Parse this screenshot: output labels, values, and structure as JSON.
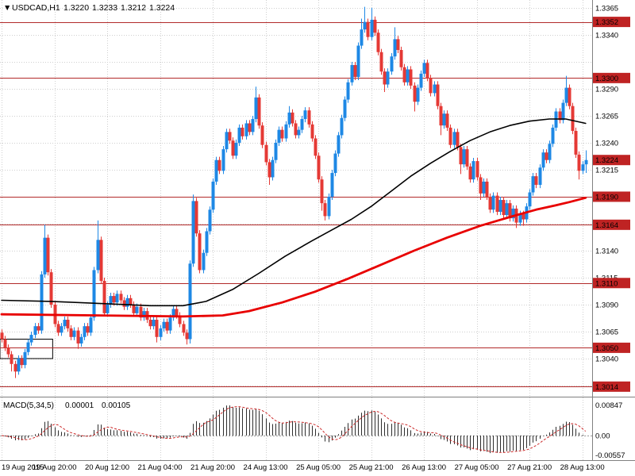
{
  "header": {
    "dropdown_icon": "▼",
    "title": "USDCAD,H1",
    "open": "1.3220",
    "high": "1.3233",
    "low": "1.3212",
    "close": "1.3224"
  },
  "macd_panel": {
    "label": "MACD(5,34,5)",
    "value_main": "0.00001",
    "value_signal": "0.00105",
    "axis_max": "0.00847",
    "axis_zero": "0.00",
    "axis_min": "-0.00557"
  },
  "colors": {
    "up": "#1e88e5",
    "down": "#e53935",
    "ma_fast": "#000000",
    "ma_slow": "#e80000",
    "level_line": "#b22a2a",
    "badge_bg": "#bf2323",
    "badge_text": "#ffffff",
    "grid": "#cfcfcf",
    "separator": "#808080",
    "macd_hist": "#2e2e2e",
    "macd_signal": "#cc2a2a",
    "object_stroke": "#000000"
  },
  "chart_data": {
    "type": "candlestick",
    "symbol": "USDCAD",
    "timeframe": "H1",
    "x_axis": {
      "bars_per_label": 16,
      "labels": [
        "19 Aug 2015",
        "19 Aug 20:00",
        "20 Aug 12:00",
        "21 Aug 04:00",
        "21 Aug 20:00",
        "24 Aug 13:00",
        "25 Aug 05:00",
        "25 Aug 21:00",
        "26 Aug 13:00",
        "27 Aug 05:00",
        "27 Aug 21:00",
        "28 Aug 13:00"
      ]
    },
    "price": {
      "ylim": [
        1.30047,
        1.33723
      ],
      "open_first": 1.3064,
      "wick_default": 0.0003,
      "closes": [
        1.3058,
        1.305,
        1.3044,
        1.3035,
        1.3028,
        1.304,
        1.3034,
        1.3046,
        1.3055,
        1.3062,
        1.307,
        1.3066,
        1.3118,
        1.3152,
        1.312,
        1.309,
        1.3072,
        1.3064,
        1.307,
        1.3076,
        1.3068,
        1.306,
        1.3066,
        1.3054,
        1.306,
        1.307,
        1.3064,
        1.3078,
        1.3122,
        1.315,
        1.3112,
        1.3082,
        1.309,
        1.3098,
        1.3092,
        1.31,
        1.3094,
        1.3088,
        1.3096,
        1.309,
        1.3082,
        1.3088,
        1.3078,
        1.3084,
        1.3076,
        1.307,
        1.3076,
        1.306,
        1.3068,
        1.3074,
        1.3066,
        1.3078,
        1.3086,
        1.308,
        1.3072,
        1.3064,
        1.3058,
        1.3128,
        1.3186,
        1.3156,
        1.3122,
        1.3138,
        1.3158,
        1.3178,
        1.3204,
        1.3224,
        1.3214,
        1.3234,
        1.325,
        1.3242,
        1.3228,
        1.324,
        1.3254,
        1.3246,
        1.3258,
        1.325,
        1.3262,
        1.3282,
        1.3256,
        1.3238,
        1.3222,
        1.3208,
        1.3224,
        1.324,
        1.3252,
        1.3244,
        1.3257,
        1.3268,
        1.3258,
        1.3247,
        1.3252,
        1.3262,
        1.327,
        1.3257,
        1.3244,
        1.3228,
        1.3206,
        1.3184,
        1.3172,
        1.319,
        1.3212,
        1.323,
        1.3247,
        1.3263,
        1.328,
        1.3296,
        1.3312,
        1.3301,
        1.333,
        1.3345,
        1.3352,
        1.3338,
        1.3354,
        1.3342,
        1.3324,
        1.3306,
        1.3294,
        1.3306,
        1.332,
        1.3336,
        1.3326,
        1.331,
        1.3296,
        1.3308,
        1.3293,
        1.3278,
        1.3291,
        1.3304,
        1.3314,
        1.33,
        1.3286,
        1.3294,
        1.3274,
        1.3256,
        1.3267,
        1.3254,
        1.3238,
        1.325,
        1.3236,
        1.322,
        1.3234,
        1.3218,
        1.3206,
        1.3223,
        1.3208,
        1.3193,
        1.3204,
        1.319,
        1.3178,
        1.3191,
        1.3176,
        1.3187,
        1.3173,
        1.3184,
        1.317,
        1.3179,
        1.3166,
        1.3174,
        1.3169,
        1.3181,
        1.3194,
        1.3209,
        1.3201,
        1.3217,
        1.3231,
        1.3224,
        1.3239,
        1.3254,
        1.3269,
        1.3261,
        1.3277,
        1.3291,
        1.3274,
        1.3251,
        1.3229,
        1.3214,
        1.322,
        1.3224
      ],
      "high_overrides": {
        "13": 1.3164,
        "29": 1.3168,
        "58": 1.3192,
        "77": 1.3292,
        "87": 1.3274,
        "109": 1.3355,
        "110": 1.3366,
        "112": 1.3365,
        "119": 1.3347,
        "171": 1.3302,
        "177": 1.3233
      },
      "low_overrides": {
        "3": 1.3028,
        "4": 1.3022,
        "23": 1.3049,
        "47": 1.3055,
        "56": 1.3053,
        "57": 1.3054,
        "81": 1.3201,
        "97": 1.3177,
        "98": 1.3168,
        "116": 1.3287,
        "125": 1.3269,
        "133": 1.3247,
        "139": 1.3211,
        "145": 1.3187,
        "156": 1.3161,
        "158": 1.3163,
        "175": 1.3206,
        "177": 1.3212
      }
    },
    "grid_prices": [
      1.3365,
      1.334,
      1.3315,
      1.329,
      1.3265,
      1.324,
      1.3215,
      1.319,
      1.3165,
      1.314,
      1.3115,
      1.309,
      1.3065,
      1.304,
      1.3015
    ],
    "axis_labels": [
      "1.3365",
      "1.3340",
      "1.3290",
      "1.3265",
      "1.3240",
      "1.3215",
      "1.3140",
      "1.3115",
      "1.3090",
      "1.3065",
      "1.3040"
    ],
    "levels": [
      {
        "price": 1.3352,
        "label": "1.3352",
        "line": true
      },
      {
        "price": 1.33,
        "label": "1.3300",
        "line": true
      },
      {
        "price": 1.3224,
        "label": "1.3224",
        "line": false,
        "current": true
      },
      {
        "price": 1.319,
        "label": "1.3190",
        "line": true
      },
      {
        "price": 1.3164,
        "label": "1.3164",
        "line": true
      },
      {
        "price": 1.311,
        "label": "1.3110",
        "line": true
      },
      {
        "price": 1.305,
        "label": "1.3050",
        "line": true
      },
      {
        "price": 1.3014,
        "label": "1.3014",
        "line": true
      }
    ],
    "moving_averages": [
      {
        "name": "ma-fast-line",
        "color_key": "ma_fast",
        "width": 1.6,
        "points": [
          [
            0,
            1.3094
          ],
          [
            15,
            1.3093
          ],
          [
            30,
            1.3091
          ],
          [
            45,
            1.3089
          ],
          [
            55,
            1.3089
          ],
          [
            62,
            1.3093
          ],
          [
            70,
            1.3104
          ],
          [
            78,
            1.3119
          ],
          [
            86,
            1.3135
          ],
          [
            94,
            1.3149
          ],
          [
            100,
            1.3159
          ],
          [
            106,
            1.3169
          ],
          [
            112,
            1.3181
          ],
          [
            118,
            1.3195
          ],
          [
            124,
            1.3209
          ],
          [
            130,
            1.3221
          ],
          [
            136,
            1.3232
          ],
          [
            142,
            1.3242
          ],
          [
            148,
            1.325
          ],
          [
            154,
            1.3256
          ],
          [
            160,
            1.326
          ],
          [
            166,
            1.3262
          ],
          [
            171,
            1.3262
          ],
          [
            177,
            1.3258
          ]
        ]
      },
      {
        "name": "ma-slow-line",
        "color_key": "ma_slow",
        "width": 2.8,
        "points": [
          [
            0,
            1.3081
          ],
          [
            30,
            1.308
          ],
          [
            55,
            1.3079
          ],
          [
            67,
            1.308
          ],
          [
            75,
            1.3084
          ],
          [
            85,
            1.3092
          ],
          [
            95,
            1.3102
          ],
          [
            105,
            1.3114
          ],
          [
            115,
            1.3127
          ],
          [
            125,
            1.314
          ],
          [
            135,
            1.3152
          ],
          [
            145,
            1.3163
          ],
          [
            155,
            1.3172
          ],
          [
            162,
            1.3178
          ],
          [
            168,
            1.3182
          ],
          [
            172,
            1.3185
          ],
          [
            177,
            1.3189
          ]
        ]
      }
    ],
    "objects": [
      {
        "type": "rectangle",
        "bar_start": 0,
        "bar_end": 15,
        "price_top": 1.3058,
        "price_bottom": 1.304
      }
    ],
    "macd": {
      "type": "bar",
      "fast": 5,
      "slow": 34,
      "signal_period": 5,
      "ylim": [
        -0.00557,
        0.00847
      ],
      "derived_from_closes": true
    }
  }
}
